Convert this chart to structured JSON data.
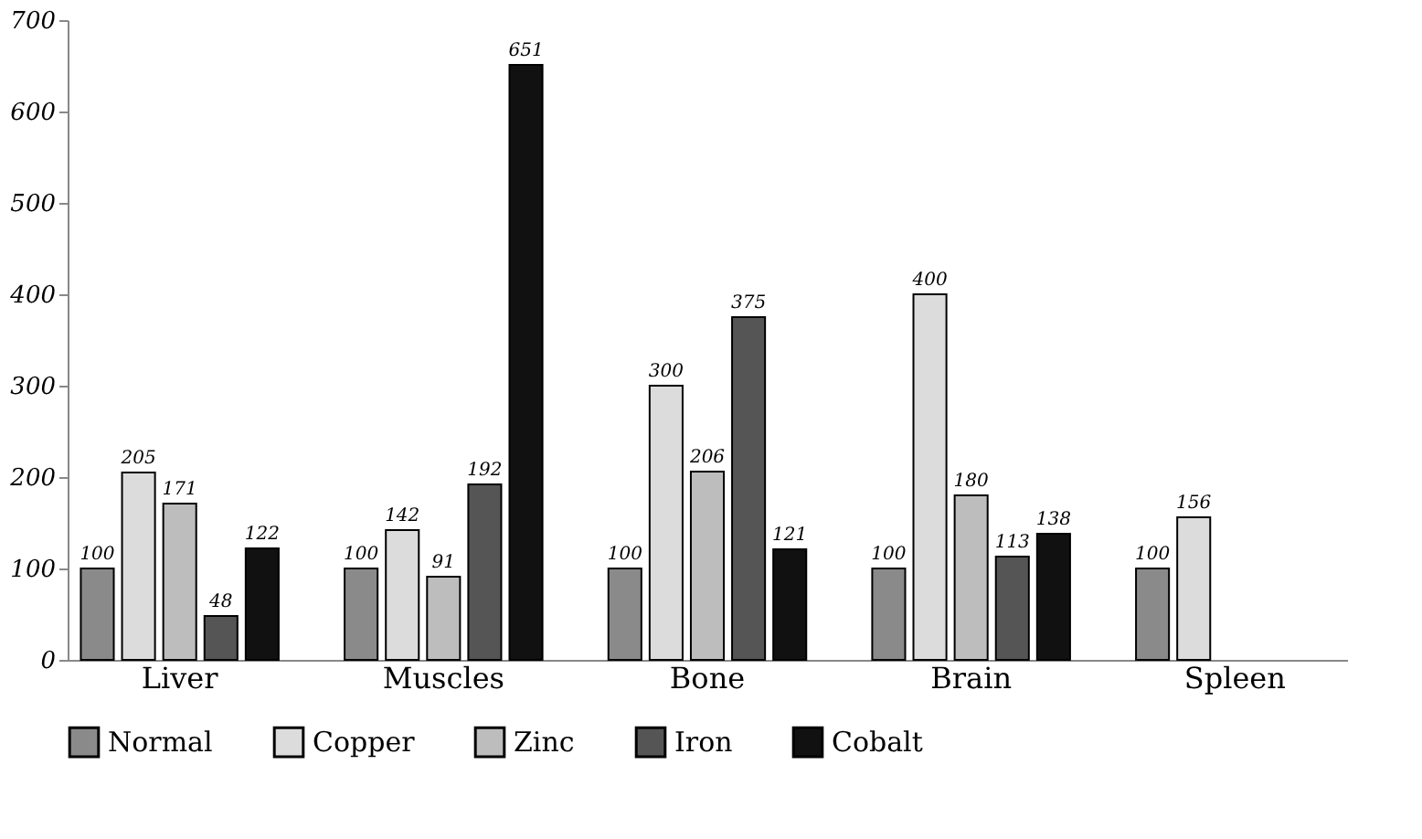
{
  "chart_data": {
    "type": "bar",
    "categories": [
      "Liver",
      "Muscles",
      "Bone",
      "Brain",
      "Spleen"
    ],
    "series": [
      {
        "name": "Normal",
        "color": "#8a8a8a",
        "values": [
          100,
          100,
          100,
          100,
          100
        ],
        "value_labels": [
          "100",
          "100",
          "100",
          "100",
          "100"
        ]
      },
      {
        "name": "Copper",
        "color": "#dcdcdc",
        "values": [
          205,
          142,
          300,
          400,
          156
        ],
        "value_labels": [
          "205",
          "142",
          "300",
          "400",
          "156"
        ]
      },
      {
        "name": "Zinc",
        "color": "#bdbdbd",
        "values": [
          171,
          91,
          206,
          180,
          null
        ],
        "value_labels": [
          "171",
          "91",
          "206",
          "180",
          null
        ]
      },
      {
        "name": "Iron",
        "color": "#555555",
        "values": [
          48,
          192,
          375,
          113,
          null
        ],
        "value_labels": [
          "48",
          "192",
          "375",
          "113",
          null
        ]
      },
      {
        "name": "Cobalt",
        "color": "#111111",
        "values": [
          122,
          651,
          121,
          138,
          null
        ],
        "value_labels": [
          "122",
          "651",
          "121",
          "138",
          null
        ]
      }
    ],
    "ylim": [
      0,
      700
    ],
    "yticks": [
      0,
      100,
      200,
      300,
      400,
      500,
      600,
      700
    ],
    "grid": false,
    "legend": "bottom"
  }
}
